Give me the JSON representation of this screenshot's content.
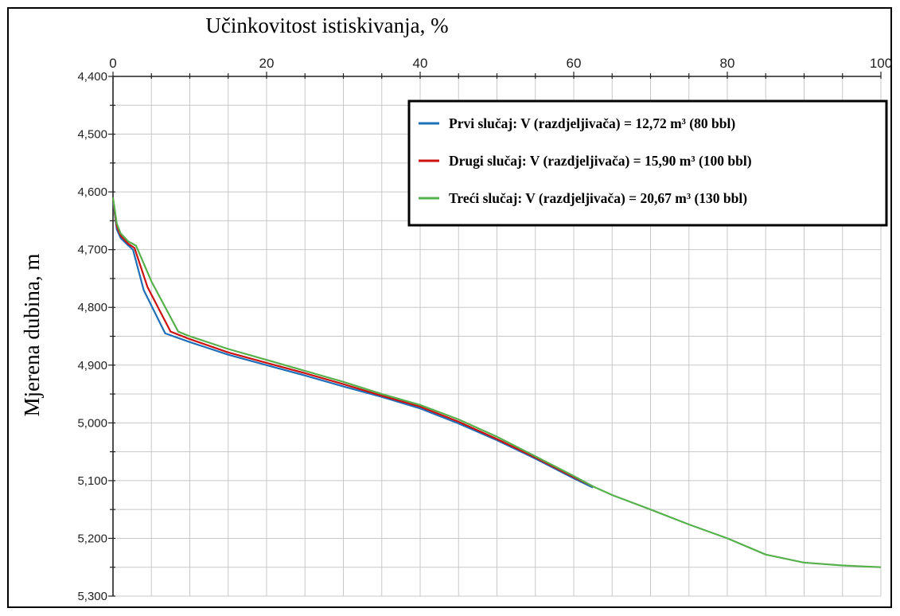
{
  "chart_data": {
    "type": "line",
    "title": "",
    "xlabel": "Učinkovitost istiskivanja, %",
    "ylabel": "Mjerena dubina, m",
    "x_axis_position": "top",
    "y_axis_inverted": true,
    "xlim": [
      0,
      100
    ],
    "ylim": [
      4400,
      5300
    ],
    "x_ticks": [
      "0",
      "20",
      "40",
      "60",
      "80",
      "100"
    ],
    "y_ticks": [
      "4,400",
      "4,500",
      "4,600",
      "4,700",
      "4,800",
      "4,900",
      "5,000",
      "5,100",
      "5,200",
      "5,300"
    ],
    "grid": true,
    "legend_position": "top-right",
    "series": [
      {
        "name": "Prvi slučaj: V (razdjeljivača) = 12,72 m³ (80 bbl)",
        "color": "#1f6fb8",
        "x": [
          0,
          0.5,
          1,
          2,
          2.6,
          4,
          6.8,
          10,
          15,
          20,
          25,
          30,
          35,
          40,
          45,
          50,
          55,
          60,
          62.5
        ],
        "y": [
          4615,
          4665,
          4680,
          4693,
          4700,
          4770,
          4845,
          4860,
          4882,
          4900,
          4918,
          4937,
          4955,
          4975,
          5001,
          5030,
          5062,
          5096,
          5112
        ]
      },
      {
        "name": "Drugi slučaj: V (razdjeljivača) = 15,90 m³ (100 bbl)",
        "color": "#cc1111",
        "x": [
          0,
          0.5,
          1,
          2,
          2.8,
          4.5,
          7.5,
          10,
          15,
          20,
          25,
          30,
          35,
          40,
          45,
          50,
          55,
          60,
          62.5
        ],
        "y": [
          4612,
          4660,
          4676,
          4690,
          4697,
          4765,
          4842,
          4855,
          4878,
          4896,
          4914,
          4933,
          4953,
          4972,
          4998,
          5028,
          5060,
          5094,
          5110
        ]
      },
      {
        "name": "Treći slučaj: V (razdjeljivača) = 20,67 m³ (130 bbl)",
        "color": "#56b04c",
        "x": [
          0,
          0.5,
          1,
          2,
          3,
          5,
          8.5,
          10,
          15,
          20,
          25,
          30,
          35,
          40,
          45,
          50,
          55,
          60,
          62.5,
          65,
          70,
          75,
          80,
          85,
          90,
          95,
          100
        ],
        "y": [
          4610,
          4655,
          4672,
          4686,
          4693,
          4755,
          4842,
          4850,
          4872,
          4891,
          4910,
          4929,
          4950,
          4969,
          4994,
          5024,
          5058,
          5092,
          5110,
          5125,
          5150,
          5176,
          5200,
          5228,
          5242,
          5247,
          5250
        ]
      }
    ]
  }
}
